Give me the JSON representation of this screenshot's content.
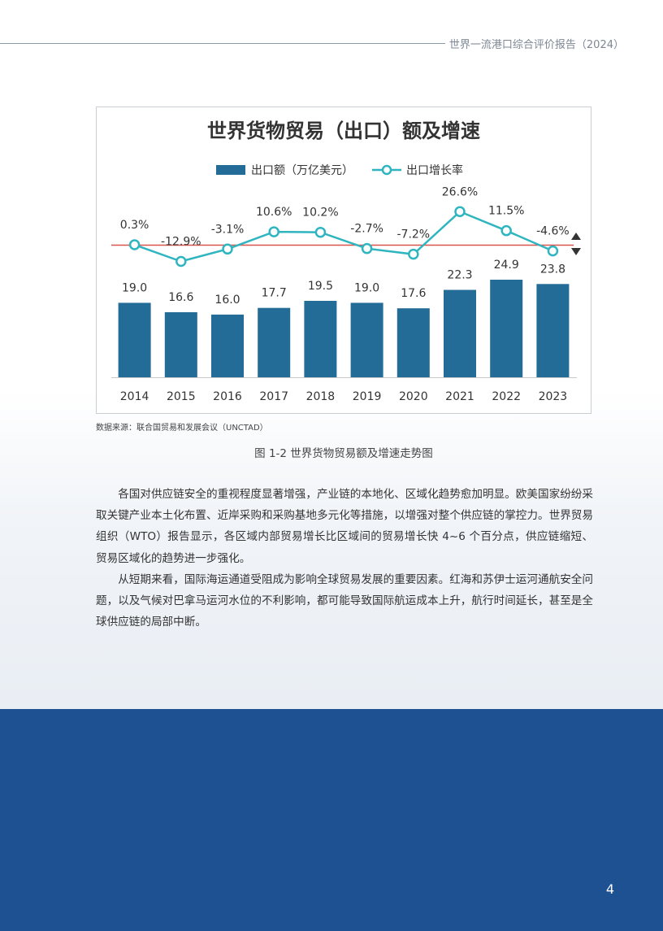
{
  "header": {
    "title": "世界一流港口综合评价报告（2024）"
  },
  "chart_data": {
    "type": "bar",
    "title": "世界货物贸易（出口）额及增速",
    "categories": [
      "2014",
      "2015",
      "2016",
      "2017",
      "2018",
      "2019",
      "2020",
      "2021",
      "2022",
      "2023"
    ],
    "series": [
      {
        "name": "出口额（万亿美元）",
        "type": "bar",
        "values": [
          19.0,
          16.6,
          16.0,
          17.7,
          19.5,
          19.0,
          17.6,
          22.3,
          24.9,
          23.8
        ],
        "labels": [
          "19.0",
          "16.6",
          "16.0",
          "17.7",
          "19.5",
          "19.0",
          "17.6",
          "22.3",
          "24.9",
          "23.8"
        ],
        "color": "#236c97"
      },
      {
        "name": "出口增长率",
        "type": "line",
        "values": [
          0.3,
          -12.9,
          -3.1,
          10.6,
          10.2,
          -2.7,
          -7.2,
          26.6,
          11.5,
          -4.6
        ],
        "labels": [
          "0.3%",
          "-12.9%",
          "-3.1%",
          "10.6%",
          "10.2%",
          "-2.7%",
          "-7.2%",
          "26.6%",
          "11.5%",
          "-4.6%"
        ],
        "color": "#2fb5c0"
      }
    ],
    "grid": false,
    "legend": "top"
  },
  "source": "数据来源：联合国贸易和发展会议（UNCTAD）",
  "caption": "图 1-2 世界货物贸易额及增速走势图",
  "paragraphs": [
    "各国对供应链安全的重视程度显著增强，产业链的本地化、区域化趋势愈加明显。欧美国家纷纷采取关键产业本土化布置、近岸采购和采购基地多元化等措施，以增强对整个供应链的掌控力。世界贸易组织（WTO）报告显示，各区域内部贸易增长比区域间的贸易增长快 4~6 个百分点，供应链缩短、贸易区域化的趋势进一步强化。",
    "从短期来看，国际海运通道受阻成为影响全球贸易发展的重要因素。红海和苏伊士运河通航安全问题，以及气候对巴拿马运河水位的不利影响，都可能导致国际航运成本上升，航行时间延长，甚至是全球供应链的局部中断。"
  ],
  "page_number": "4"
}
